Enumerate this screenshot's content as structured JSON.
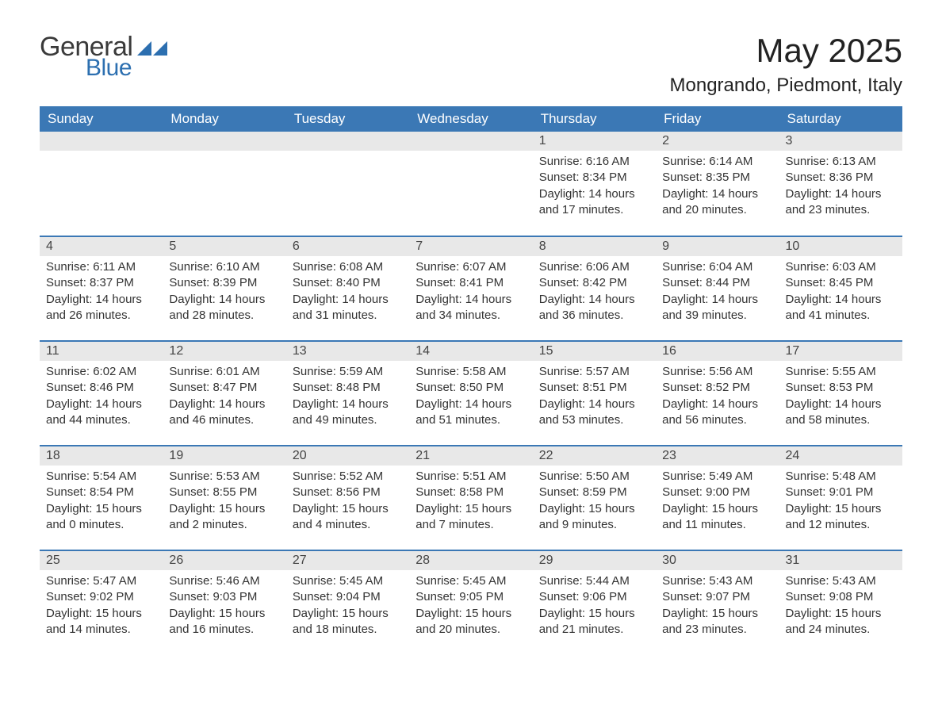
{
  "brand": {
    "word1": "General",
    "word2": "Blue",
    "icon_color": "#2c6fb0",
    "text1_color": "#3a3a3a",
    "text2_color": "#2c6fb0"
  },
  "title": "May 2025",
  "location": "Mongrando, Piedmont, Italy",
  "colors": {
    "header_bg": "#3b78b5",
    "header_text": "#ffffff",
    "day_num_bg": "#e8e8e8",
    "row_border": "#3b78b5",
    "body_text": "#333333",
    "page_bg": "#ffffff"
  },
  "weekdays": [
    "Sunday",
    "Monday",
    "Tuesday",
    "Wednesday",
    "Thursday",
    "Friday",
    "Saturday"
  ],
  "blank_leading": 4,
  "days": [
    {
      "n": 1,
      "sunrise": "6:16 AM",
      "sunset": "8:34 PM",
      "daylight": "14 hours and 17 minutes."
    },
    {
      "n": 2,
      "sunrise": "6:14 AM",
      "sunset": "8:35 PM",
      "daylight": "14 hours and 20 minutes."
    },
    {
      "n": 3,
      "sunrise": "6:13 AM",
      "sunset": "8:36 PM",
      "daylight": "14 hours and 23 minutes."
    },
    {
      "n": 4,
      "sunrise": "6:11 AM",
      "sunset": "8:37 PM",
      "daylight": "14 hours and 26 minutes."
    },
    {
      "n": 5,
      "sunrise": "6:10 AM",
      "sunset": "8:39 PM",
      "daylight": "14 hours and 28 minutes."
    },
    {
      "n": 6,
      "sunrise": "6:08 AM",
      "sunset": "8:40 PM",
      "daylight": "14 hours and 31 minutes."
    },
    {
      "n": 7,
      "sunrise": "6:07 AM",
      "sunset": "8:41 PM",
      "daylight": "14 hours and 34 minutes."
    },
    {
      "n": 8,
      "sunrise": "6:06 AM",
      "sunset": "8:42 PM",
      "daylight": "14 hours and 36 minutes."
    },
    {
      "n": 9,
      "sunrise": "6:04 AM",
      "sunset": "8:44 PM",
      "daylight": "14 hours and 39 minutes."
    },
    {
      "n": 10,
      "sunrise": "6:03 AM",
      "sunset": "8:45 PM",
      "daylight": "14 hours and 41 minutes."
    },
    {
      "n": 11,
      "sunrise": "6:02 AM",
      "sunset": "8:46 PM",
      "daylight": "14 hours and 44 minutes."
    },
    {
      "n": 12,
      "sunrise": "6:01 AM",
      "sunset": "8:47 PM",
      "daylight": "14 hours and 46 minutes."
    },
    {
      "n": 13,
      "sunrise": "5:59 AM",
      "sunset": "8:48 PM",
      "daylight": "14 hours and 49 minutes."
    },
    {
      "n": 14,
      "sunrise": "5:58 AM",
      "sunset": "8:50 PM",
      "daylight": "14 hours and 51 minutes."
    },
    {
      "n": 15,
      "sunrise": "5:57 AM",
      "sunset": "8:51 PM",
      "daylight": "14 hours and 53 minutes."
    },
    {
      "n": 16,
      "sunrise": "5:56 AM",
      "sunset": "8:52 PM",
      "daylight": "14 hours and 56 minutes."
    },
    {
      "n": 17,
      "sunrise": "5:55 AM",
      "sunset": "8:53 PM",
      "daylight": "14 hours and 58 minutes."
    },
    {
      "n": 18,
      "sunrise": "5:54 AM",
      "sunset": "8:54 PM",
      "daylight": "15 hours and 0 minutes."
    },
    {
      "n": 19,
      "sunrise": "5:53 AM",
      "sunset": "8:55 PM",
      "daylight": "15 hours and 2 minutes."
    },
    {
      "n": 20,
      "sunrise": "5:52 AM",
      "sunset": "8:56 PM",
      "daylight": "15 hours and 4 minutes."
    },
    {
      "n": 21,
      "sunrise": "5:51 AM",
      "sunset": "8:58 PM",
      "daylight": "15 hours and 7 minutes."
    },
    {
      "n": 22,
      "sunrise": "5:50 AM",
      "sunset": "8:59 PM",
      "daylight": "15 hours and 9 minutes."
    },
    {
      "n": 23,
      "sunrise": "5:49 AM",
      "sunset": "9:00 PM",
      "daylight": "15 hours and 11 minutes."
    },
    {
      "n": 24,
      "sunrise": "5:48 AM",
      "sunset": "9:01 PM",
      "daylight": "15 hours and 12 minutes."
    },
    {
      "n": 25,
      "sunrise": "5:47 AM",
      "sunset": "9:02 PM",
      "daylight": "15 hours and 14 minutes."
    },
    {
      "n": 26,
      "sunrise": "5:46 AM",
      "sunset": "9:03 PM",
      "daylight": "15 hours and 16 minutes."
    },
    {
      "n": 27,
      "sunrise": "5:45 AM",
      "sunset": "9:04 PM",
      "daylight": "15 hours and 18 minutes."
    },
    {
      "n": 28,
      "sunrise": "5:45 AM",
      "sunset": "9:05 PM",
      "daylight": "15 hours and 20 minutes."
    },
    {
      "n": 29,
      "sunrise": "5:44 AM",
      "sunset": "9:06 PM",
      "daylight": "15 hours and 21 minutes."
    },
    {
      "n": 30,
      "sunrise": "5:43 AM",
      "sunset": "9:07 PM",
      "daylight": "15 hours and 23 minutes."
    },
    {
      "n": 31,
      "sunrise": "5:43 AM",
      "sunset": "9:08 PM",
      "daylight": "15 hours and 24 minutes."
    }
  ],
  "labels": {
    "sunrise": "Sunrise: ",
    "sunset": "Sunset: ",
    "daylight": "Daylight: "
  }
}
